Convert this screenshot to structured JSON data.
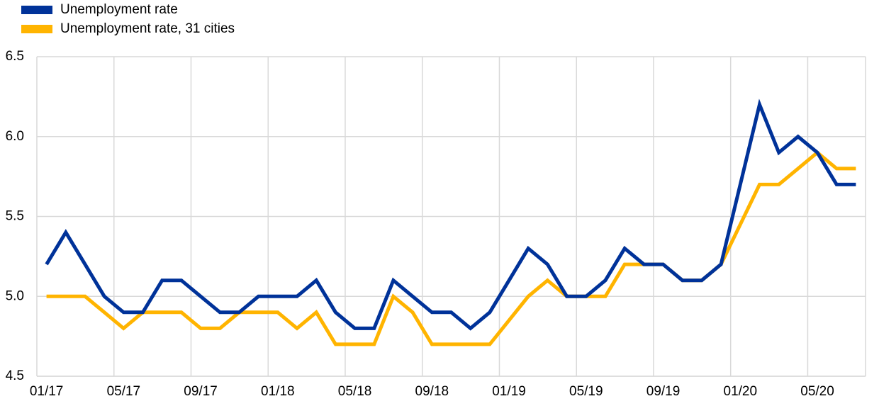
{
  "chart_data": {
    "type": "line",
    "categories": [
      "01/17",
      null,
      null,
      null,
      "05/17",
      null,
      null,
      null,
      "09/17",
      null,
      null,
      null,
      "01/18",
      null,
      null,
      null,
      "05/18",
      null,
      null,
      null,
      "09/18",
      null,
      null,
      null,
      "01/19",
      null,
      null,
      null,
      "05/19",
      null,
      null,
      null,
      "09/19",
      null,
      null,
      null,
      "01/20",
      null,
      null,
      null,
      "05/20",
      null,
      null
    ],
    "series": [
      {
        "name": "Unemployment rate",
        "color": "#003299",
        "values": [
          5.2,
          5.4,
          5.2,
          5.0,
          4.9,
          4.9,
          5.1,
          5.1,
          5.0,
          4.9,
          4.9,
          5.0,
          5.0,
          5.0,
          5.1,
          4.9,
          4.8,
          4.8,
          5.1,
          5.0,
          4.9,
          4.9,
          4.8,
          4.9,
          5.1,
          5.3,
          5.2,
          5.0,
          5.0,
          5.1,
          5.3,
          5.2,
          5.2,
          5.1,
          5.1,
          5.2,
          5.7,
          6.2,
          5.9,
          6.0,
          5.9,
          5.7,
          5.7
        ]
      },
      {
        "name": "Unemployment rate, 31 cities",
        "color": "#ffb400",
        "values": [
          5.0,
          5.0,
          5.0,
          4.9,
          4.8,
          4.9,
          4.9,
          4.9,
          4.8,
          4.8,
          4.9,
          4.9,
          4.9,
          4.8,
          4.9,
          4.7,
          4.7,
          4.7,
          5.0,
          4.9,
          4.7,
          4.7,
          4.7,
          4.7,
          4.85,
          5.0,
          5.1,
          5.0,
          5.0,
          5.0,
          5.2,
          5.2,
          5.2,
          5.1,
          5.1,
          5.2,
          5.45,
          5.7,
          5.7,
          5.8,
          5.9,
          5.8,
          5.8
        ]
      }
    ],
    "ylim": [
      4.5,
      6.5
    ],
    "yticks": [
      4.5,
      {
        "value": 5,
        "label": "5.0"
      },
      5.5,
      {
        "value": 6,
        "label": "6.0"
      },
      6.5
    ],
    "grid": true
  }
}
